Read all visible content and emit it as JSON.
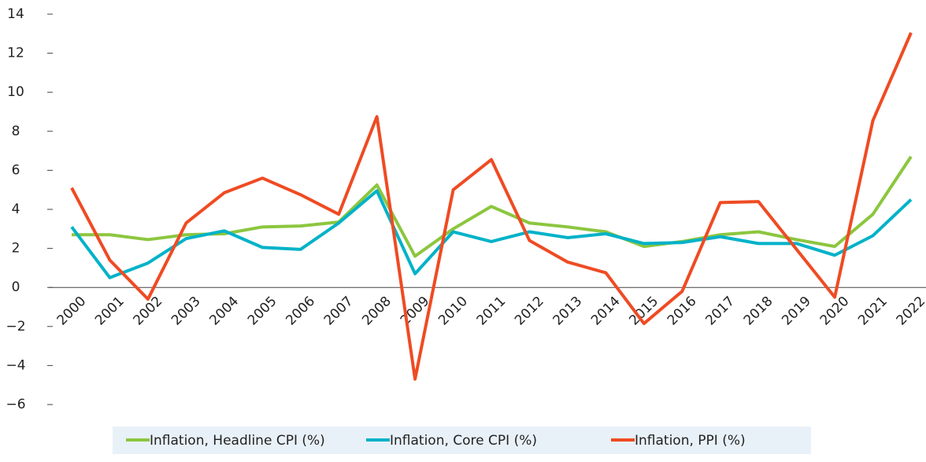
{
  "chart_data": {
    "type": "line",
    "categories": [
      "2000",
      "2001",
      "2002",
      "2003",
      "2004",
      "2005",
      "2006",
      "2007",
      "2008",
      "2009",
      "2010",
      "2011",
      "2012",
      "2013",
      "2014",
      "2015",
      "2016",
      "2017",
      "2018",
      "2019",
      "2020",
      "2021",
      "2022"
    ],
    "series": [
      {
        "name": "Inflation, Headline CPI (%)",
        "color": "#8cc63f",
        "values": [
          2.7,
          2.7,
          2.45,
          2.7,
          2.75,
          3.1,
          3.15,
          3.35,
          5.25,
          1.6,
          3.0,
          4.15,
          3.3,
          3.1,
          2.85,
          2.1,
          2.35,
          2.7,
          2.85,
          2.45,
          2.1,
          3.75,
          6.7
        ]
      },
      {
        "name": "Inflation, Core CPI (%)",
        "color": "#00b2c8",
        "values": [
          3.1,
          0.5,
          1.25,
          2.5,
          2.9,
          2.05,
          1.95,
          3.3,
          4.95,
          0.7,
          2.85,
          2.35,
          2.85,
          2.55,
          2.75,
          2.25,
          2.3,
          2.6,
          2.25,
          2.25,
          1.65,
          2.65,
          4.5
        ]
      },
      {
        "name": "Inflation, PPI (%)",
        "color": "#ef4b23",
        "values": [
          5.1,
          1.4,
          -0.6,
          3.3,
          4.85,
          5.6,
          4.75,
          3.75,
          8.75,
          -4.7,
          5.0,
          6.55,
          2.4,
          1.3,
          0.75,
          -1.85,
          -0.2,
          4.35,
          4.4,
          1.95,
          -0.5,
          8.55,
          13.05
        ]
      }
    ],
    "ylim": [
      -6,
      14
    ],
    "yticks": [
      {
        "value": -6,
        "label": "−6"
      },
      {
        "value": -4,
        "label": "−4"
      },
      {
        "value": -2,
        "label": "−2"
      },
      0,
      2,
      4,
      6,
      8,
      10,
      12,
      14
    ],
    "legend": "bottom"
  }
}
